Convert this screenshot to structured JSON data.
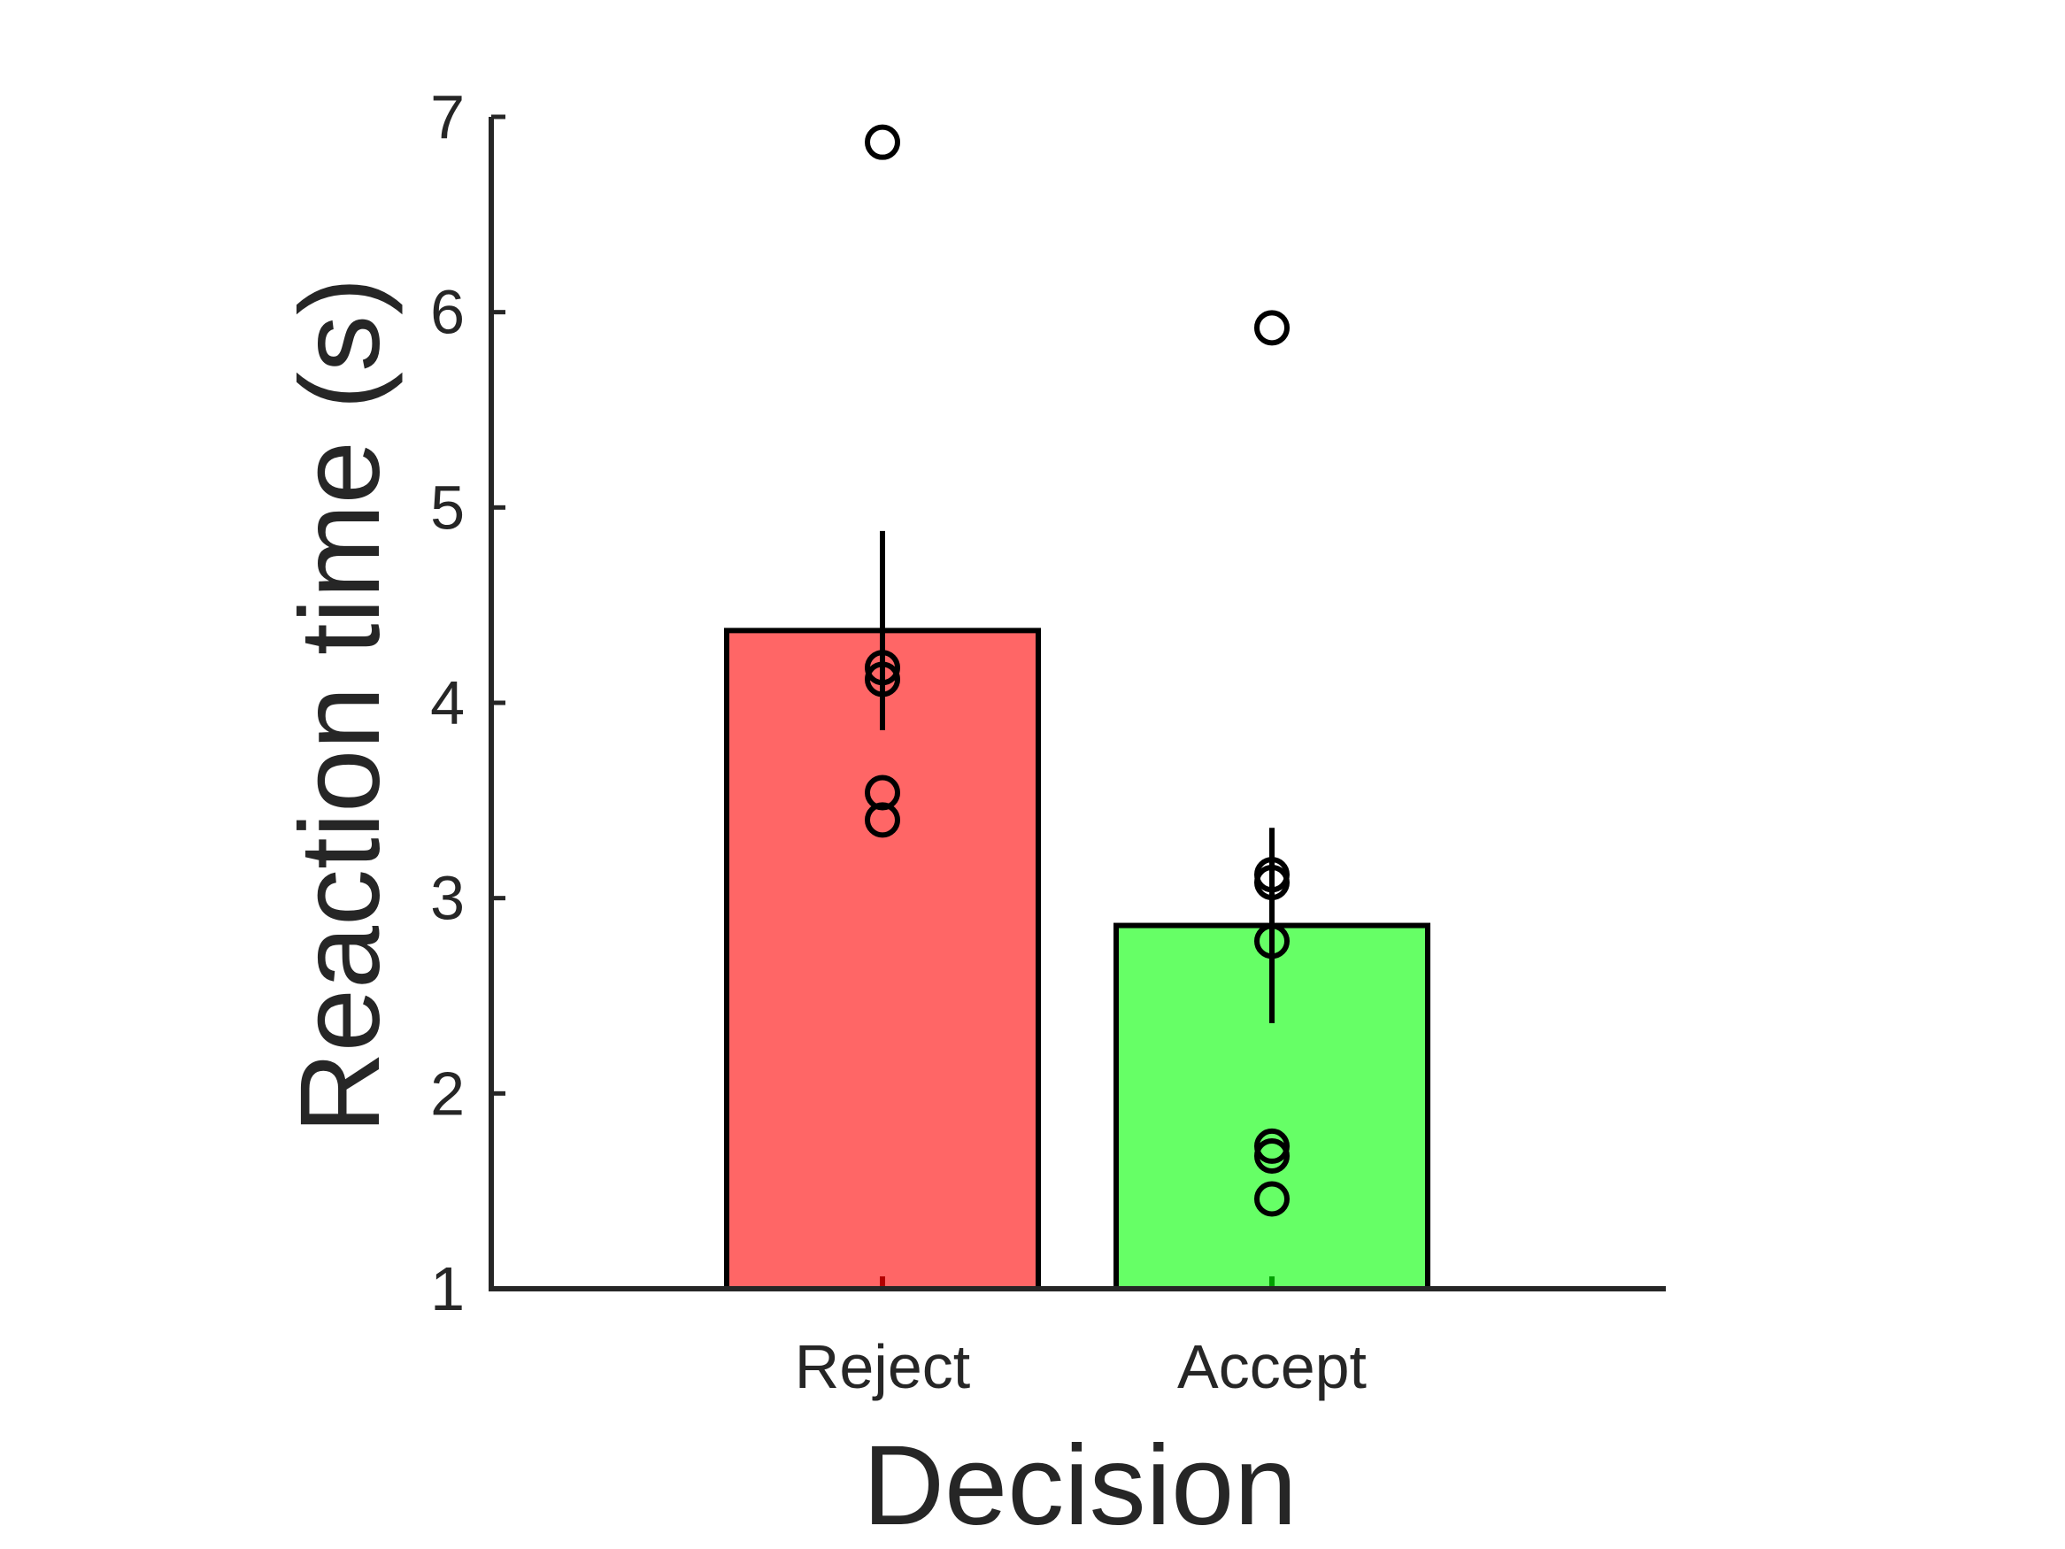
{
  "chart_data": {
    "type": "bar",
    "xlabel": "Decision",
    "ylabel": "Reaction time (s)",
    "ylim": [
      1,
      7
    ],
    "yticks": [
      "1",
      "2",
      "3",
      "4",
      "5",
      "6",
      "7"
    ],
    "categories": [
      "Reject",
      "Accept"
    ],
    "values": [
      4.37,
      2.86
    ],
    "error_bars": [
      {
        "low": 3.86,
        "high": 4.88
      },
      {
        "low": 2.36,
        "high": 3.36
      }
    ],
    "points": [
      [
        6.87,
        4.18,
        4.12,
        3.54,
        3.4
      ],
      [
        5.92,
        3.12,
        3.08,
        2.78,
        1.73,
        1.68,
        1.46
      ]
    ],
    "bar_colors": [
      "#ff6666",
      "#66ff66"
    ],
    "axis_color": "#262626",
    "grid": false,
    "legend": "none"
  }
}
